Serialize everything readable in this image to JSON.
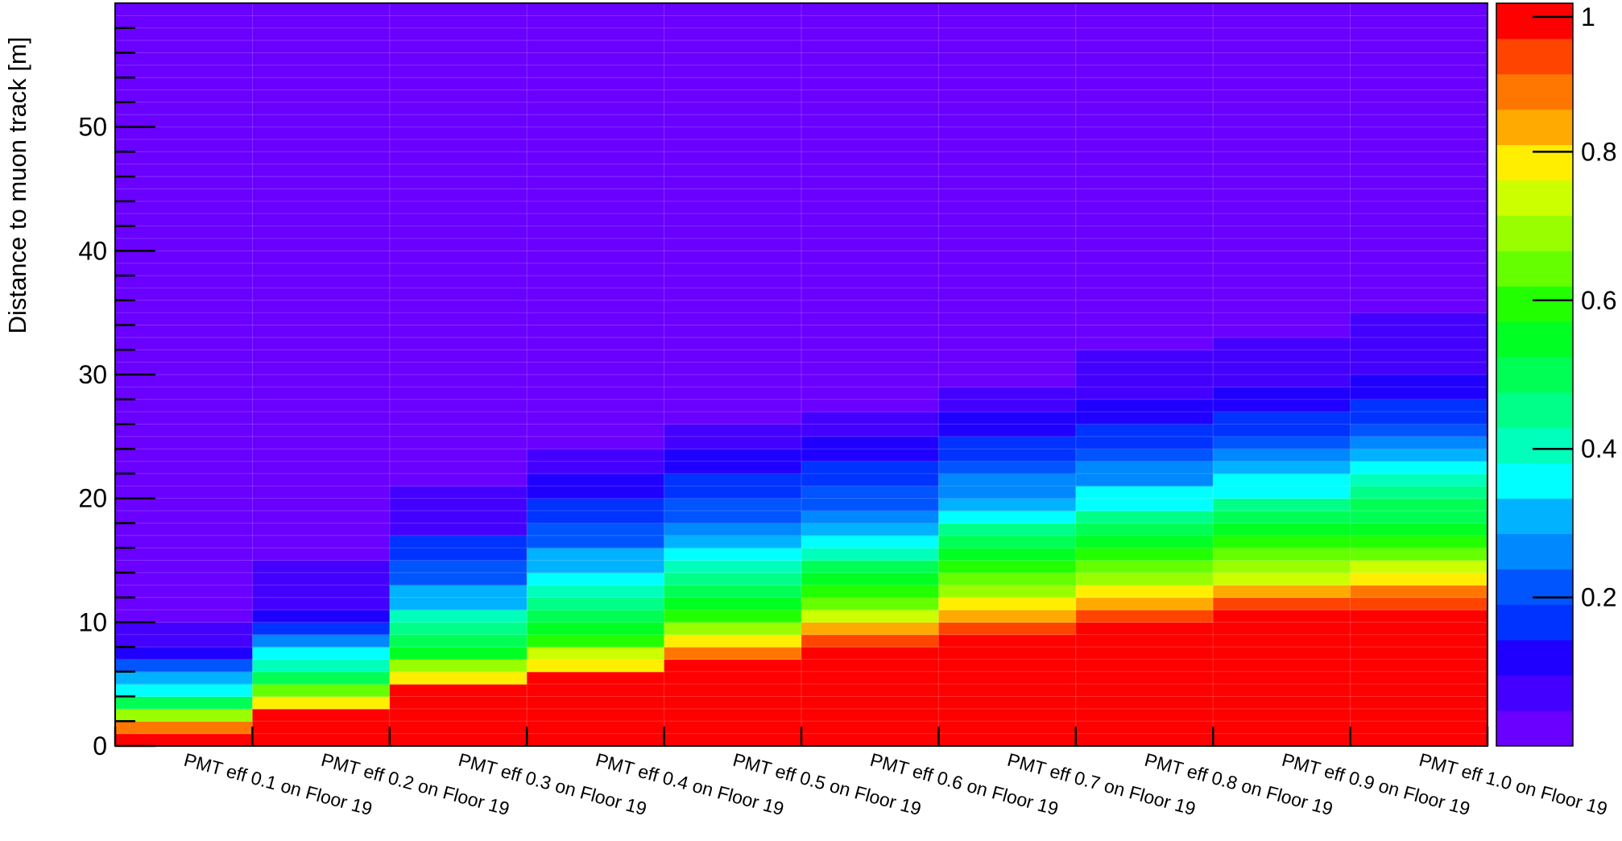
{
  "chart_data": {
    "type": "heatmap",
    "title": "",
    "xlabel": "",
    "ylabel": "Distance to muon track [m]",
    "categories": [
      "PMT eff 0.1 on Floor 19",
      "PMT eff 0.2 on Floor 19",
      "PMT eff 0.3 on Floor 19",
      "PMT eff 0.4 on Floor 19",
      "PMT eff 0.5 on Floor 19",
      "PMT eff 0.6 on Floor 19",
      "PMT eff 0.7 on Floor 19",
      "PMT eff 0.8 on Floor 19",
      "PMT eff 0.9 on Floor 19",
      "PMT eff 1.0 on Floor 19"
    ],
    "y_bin_width": 1,
    "ylim": [
      0,
      60
    ],
    "y_ticks": [
      0,
      10,
      20,
      30,
      40,
      50
    ],
    "z_range": [
      0,
      1
    ],
    "z_ticks": [
      0.2,
      0.4,
      0.6,
      0.8,
      1
    ],
    "z_tick_labels": [
      "0.2",
      "0.4",
      "0.6",
      "0.8",
      "1"
    ],
    "grid": false,
    "palette": [
      "#6a00ff",
      "#4400ff",
      "#1f00ff",
      "#0033ff",
      "#0055ff",
      "#0088ff",
      "#00b2ff",
      "#00ffff",
      "#00ffbb",
      "#00ff88",
      "#00ff55",
      "#00ff22",
      "#22ff00",
      "#66ff00",
      "#99ff00",
      "#ccff00",
      "#ffee00",
      "#ffaa00",
      "#ff7700",
      "#ff4400",
      "#ff0000"
    ],
    "columns": [
      {
        "name": "PMT eff 0.1 on Floor 19",
        "max_extent": 13,
        "values": [
          0.99,
          0.9,
          0.7,
          0.52,
          0.38,
          0.29,
          0.2,
          0.14,
          0.09,
          0.06,
          0.03,
          0.03,
          0.01
        ]
      },
      {
        "name": "PMT eff 0.2 on Floor 19",
        "max_extent": 19,
        "values": [
          1.0,
          1.0,
          0.98,
          0.8,
          0.62,
          0.5,
          0.4,
          0.34,
          0.24,
          0.17,
          0.12,
          0.08,
          0.08,
          0.05,
          0.05,
          0.03,
          0.03,
          0.01,
          0.01
        ]
      },
      {
        "name": "PMT eff 0.3 on Floor 19",
        "max_extent": 24,
        "values": [
          1.0,
          1.0,
          1.0,
          0.98,
          0.96,
          0.8,
          0.7,
          0.57,
          0.52,
          0.45,
          0.4,
          0.32,
          0.29,
          0.21,
          0.2,
          0.16,
          0.16,
          0.09,
          0.09,
          0.06,
          0.06,
          0.03,
          0.03,
          0.01
        ]
      },
      {
        "name": "PMT eff 0.4 on Floor 19",
        "max_extent": 27,
        "values": [
          1.0,
          1.0,
          1.0,
          1.0,
          0.98,
          0.96,
          0.8,
          0.72,
          0.6,
          0.56,
          0.52,
          0.46,
          0.41,
          0.35,
          0.31,
          0.29,
          0.21,
          0.2,
          0.16,
          0.16,
          0.1,
          0.1,
          0.06,
          0.06,
          0.03,
          0.03,
          0.01
        ]
      },
      {
        "name": "PMT eff 0.5 on Floor 19",
        "max_extent": 29,
        "values": [
          1.0,
          1.0,
          1.0,
          1.0,
          1.0,
          0.98,
          0.96,
          0.88,
          0.8,
          0.7,
          0.6,
          0.57,
          0.52,
          0.46,
          0.41,
          0.37,
          0.33,
          0.28,
          0.21,
          0.2,
          0.17,
          0.16,
          0.1,
          0.1,
          0.06,
          0.06,
          0.03,
          0.03,
          0.01
        ]
      },
      {
        "name": "PMT eff 0.6 on Floor 19",
        "max_extent": 32,
        "values": [
          1.0,
          1.0,
          1.0,
          1.0,
          1.0,
          1.0,
          0.99,
          0.96,
          0.92,
          0.84,
          0.74,
          0.64,
          0.58,
          0.54,
          0.48,
          0.42,
          0.37,
          0.33,
          0.28,
          0.21,
          0.21,
          0.17,
          0.16,
          0.1,
          0.1,
          0.06,
          0.06,
          0.04,
          0.04,
          0.02,
          0.02,
          0.01
        ]
      },
      {
        "name": "PMT eff 0.7 on Floor 19",
        "max_extent": 34,
        "values": [
          1.0,
          1.0,
          1.0,
          1.0,
          1.0,
          1.0,
          0.99,
          0.99,
          0.96,
          0.92,
          0.84,
          0.8,
          0.7,
          0.63,
          0.58,
          0.54,
          0.5,
          0.44,
          0.37,
          0.33,
          0.28,
          0.24,
          0.21,
          0.17,
          0.16,
          0.11,
          0.11,
          0.08,
          0.08,
          0.04,
          0.04,
          0.04,
          0.02,
          0.01
        ]
      },
      {
        "name": "PMT eff 0.8 on Floor 19",
        "max_extent": 36,
        "values": [
          1.0,
          1.0,
          1.0,
          1.0,
          1.0,
          1.0,
          1.0,
          0.99,
          0.98,
          0.96,
          0.92,
          0.84,
          0.78,
          0.68,
          0.62,
          0.58,
          0.54,
          0.48,
          0.44,
          0.37,
          0.34,
          0.28,
          0.24,
          0.21,
          0.17,
          0.16,
          0.12,
          0.12,
          0.08,
          0.08,
          0.06,
          0.06,
          0.04,
          0.04,
          0.02,
          0.02
        ]
      },
      {
        "name": "PMT eff 0.9 on Floor 19",
        "max_extent": 37,
        "values": [
          1.0,
          1.0,
          1.0,
          1.0,
          1.0,
          1.0,
          1.0,
          1.0,
          0.99,
          0.98,
          0.96,
          0.92,
          0.84,
          0.76,
          0.68,
          0.62,
          0.58,
          0.54,
          0.48,
          0.44,
          0.38,
          0.34,
          0.3,
          0.24,
          0.21,
          0.17,
          0.16,
          0.13,
          0.12,
          0.09,
          0.08,
          0.06,
          0.06,
          0.04,
          0.04,
          0.03,
          0.02
        ]
      },
      {
        "name": "PMT eff 1.0 on Floor 19",
        "max_extent": 39,
        "values": [
          1.0,
          1.0,
          1.0,
          1.0,
          1.0,
          1.0,
          1.0,
          1.0,
          0.99,
          0.98,
          0.96,
          0.92,
          0.88,
          0.8,
          0.72,
          0.66,
          0.6,
          0.56,
          0.52,
          0.48,
          0.44,
          0.4,
          0.36,
          0.32,
          0.26,
          0.22,
          0.18,
          0.16,
          0.13,
          0.12,
          0.09,
          0.08,
          0.07,
          0.06,
          0.05,
          0.04,
          0.03,
          0.02,
          0.02
        ]
      }
    ]
  }
}
